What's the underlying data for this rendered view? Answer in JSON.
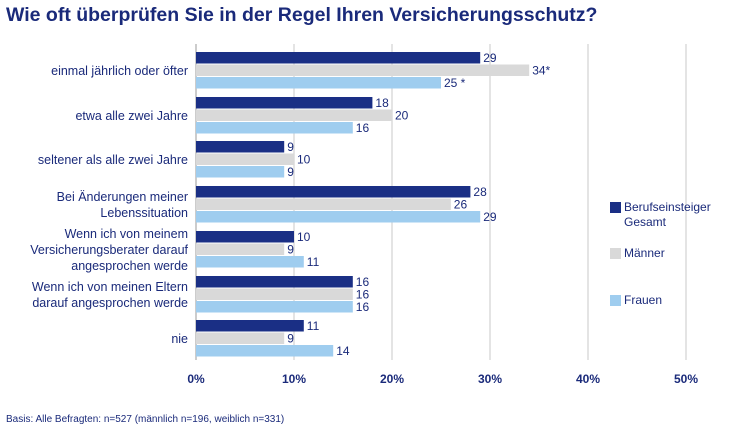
{
  "title": "Wie oft überprüfen Sie in der Regel Ihren Versicherungsschutz?",
  "footnote": "Basis: Alle Befragten: n=527 (männlich n=196, weiblich n=331)",
  "colors": {
    "series": [
      "#1a2f85",
      "#d9d9d9",
      "#9fcdef"
    ],
    "text": "#1a2a7a",
    "grid": "#c8c8c8"
  },
  "legend": [
    {
      "label": "Berufseinsteiger Gesamt"
    },
    {
      "label": "Männer"
    },
    {
      "label": "Frauen"
    }
  ],
  "chart_data": {
    "type": "bar",
    "orientation": "horizontal",
    "title": "Wie oft überprüfen Sie in der Regel Ihren Versicherungsschutz?",
    "categories": [
      "einmal jährlich oder öfter",
      "etwa alle zwei Jahre",
      "seltener als alle zwei Jahre",
      "Bei Änderungen meiner Lebenssituation",
      "Wenn ich von meinem Versicherungsberater darauf angesprochen werde",
      "Wenn ich von meinen Eltern darauf angesprochen werde",
      "nie"
    ],
    "category_lines": [
      [
        "einmal jährlich oder öfter"
      ],
      [
        "etwa alle zwei Jahre"
      ],
      [
        "seltener als alle zwei Jahre"
      ],
      [
        "Bei Änderungen meiner",
        "Lebenssituation"
      ],
      [
        "Wenn ich von meinem",
        "Versicherungsberater darauf",
        "angesprochen werde"
      ],
      [
        "Wenn ich von meinen Eltern",
        "darauf angesprochen werde"
      ],
      [
        "nie"
      ]
    ],
    "series": [
      {
        "name": "Berufseinsteiger Gesamt",
        "values": [
          29,
          18,
          9,
          28,
          10,
          16,
          11
        ],
        "labels": [
          "29",
          "18",
          "9",
          "28",
          "10",
          "16",
          "11"
        ]
      },
      {
        "name": "Männer",
        "values": [
          34,
          20,
          10,
          26,
          9,
          16,
          9
        ],
        "labels": [
          "34*",
          "20",
          "10",
          "26",
          "9",
          "16",
          "9"
        ]
      },
      {
        "name": "Frauen",
        "values": [
          25,
          16,
          9,
          29,
          11,
          16,
          14
        ],
        "labels": [
          "25 *",
          "16",
          "9",
          "29",
          "11",
          "16",
          "14"
        ]
      }
    ],
    "xlim": [
      0,
      50
    ],
    "xticks": [
      "0%",
      "10%",
      "20%",
      "30%",
      "40%",
      "50%"
    ],
    "grid": true,
    "legend_position": "right"
  }
}
